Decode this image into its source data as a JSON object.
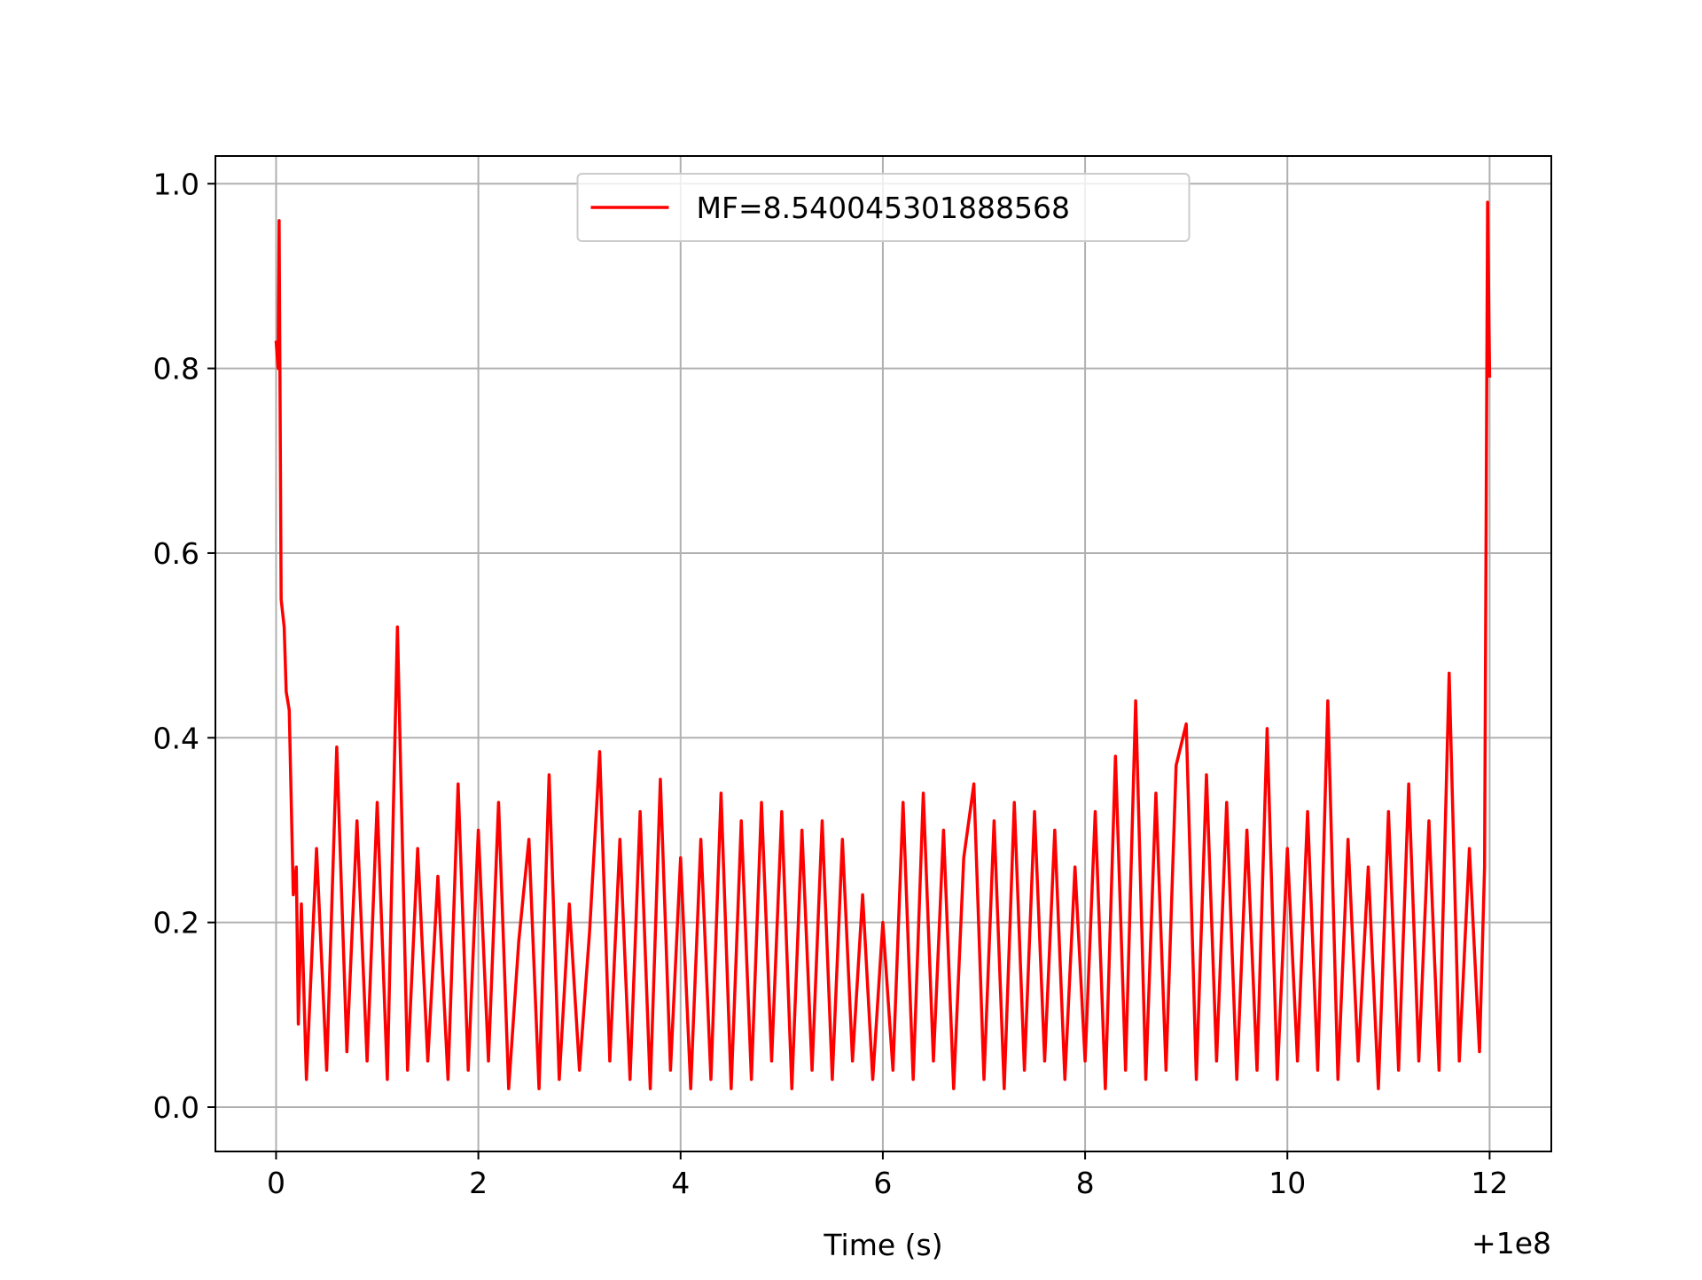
{
  "chart_data": {
    "type": "line",
    "xlabel": "Time (s)",
    "x_offset_label": "+1e8",
    "x": [
      0,
      0.02,
      0.03,
      0.05,
      0.08,
      0.1,
      0.13,
      0.15,
      0.17,
      0.2,
      0.22,
      0.25,
      0.3,
      0.4,
      0.5,
      0.6,
      0.7,
      0.8,
      0.9,
      1.0,
      1.1,
      1.2,
      1.3,
      1.4,
      1.5,
      1.6,
      1.7,
      1.8,
      1.9,
      2.0,
      2.1,
      2.2,
      2.3,
      2.4,
      2.5,
      2.6,
      2.7,
      2.8,
      2.9,
      3.0,
      3.1,
      3.2,
      3.3,
      3.4,
      3.5,
      3.6,
      3.7,
      3.8,
      3.9,
      4.0,
      4.1,
      4.2,
      4.3,
      4.4,
      4.5,
      4.6,
      4.7,
      4.8,
      4.9,
      5.0,
      5.1,
      5.2,
      5.3,
      5.4,
      5.5,
      5.6,
      5.7,
      5.8,
      5.9,
      6.0,
      6.1,
      6.2,
      6.3,
      6.4,
      6.5,
      6.6,
      6.7,
      6.8,
      6.9,
      7.0,
      7.1,
      7.2,
      7.3,
      7.4,
      7.5,
      7.6,
      7.7,
      7.8,
      7.9,
      8.0,
      8.1,
      8.2,
      8.3,
      8.4,
      8.5,
      8.6,
      8.7,
      8.8,
      8.9,
      9.0,
      9.1,
      9.2,
      9.3,
      9.4,
      9.5,
      9.6,
      9.7,
      9.8,
      9.9,
      10.0,
      10.1,
      10.2,
      10.3,
      10.4,
      10.5,
      10.6,
      10.7,
      10.8,
      10.9,
      11.0,
      11.1,
      11.2,
      11.3,
      11.4,
      11.5,
      11.6,
      11.7,
      11.8,
      11.9,
      11.95,
      11.98,
      12.0
    ],
    "series": [
      {
        "name": "MF=8.540045301888568",
        "color": "#ff0000",
        "values": [
          0.83,
          0.8,
          0.96,
          0.55,
          0.52,
          0.45,
          0.43,
          0.33,
          0.23,
          0.26,
          0.09,
          0.22,
          0.03,
          0.28,
          0.04,
          0.39,
          0.06,
          0.31,
          0.05,
          0.33,
          0.03,
          0.52,
          0.04,
          0.28,
          0.05,
          0.25,
          0.03,
          0.35,
          0.04,
          0.3,
          0.05,
          0.33,
          0.02,
          0.18,
          0.29,
          0.02,
          0.36,
          0.03,
          0.22,
          0.04,
          0.19,
          0.385,
          0.05,
          0.29,
          0.03,
          0.32,
          0.02,
          0.355,
          0.04,
          0.27,
          0.02,
          0.29,
          0.03,
          0.34,
          0.02,
          0.31,
          0.03,
          0.33,
          0.05,
          0.32,
          0.02,
          0.3,
          0.04,
          0.31,
          0.03,
          0.29,
          0.05,
          0.23,
          0.03,
          0.2,
          0.04,
          0.33,
          0.03,
          0.34,
          0.05,
          0.3,
          0.02,
          0.27,
          0.35,
          0.03,
          0.31,
          0.02,
          0.33,
          0.04,
          0.32,
          0.05,
          0.3,
          0.03,
          0.26,
          0.05,
          0.32,
          0.02,
          0.38,
          0.04,
          0.44,
          0.03,
          0.34,
          0.04,
          0.37,
          0.415,
          0.03,
          0.36,
          0.05,
          0.33,
          0.03,
          0.3,
          0.04,
          0.41,
          0.03,
          0.28,
          0.05,
          0.32,
          0.04,
          0.44,
          0.03,
          0.29,
          0.05,
          0.26,
          0.02,
          0.32,
          0.04,
          0.35,
          0.05,
          0.31,
          0.04,
          0.47,
          0.05,
          0.28,
          0.06,
          0.26,
          0.98,
          0.79
        ]
      }
    ],
    "xlim": [
      -0.6,
      12.61
    ],
    "ylim": [
      -0.048,
      1.03
    ],
    "xticks": [
      0,
      2,
      4,
      6,
      8,
      10,
      12
    ],
    "yticks": [
      {
        "value": 0,
        "label": "0.0"
      },
      0.2,
      0.4,
      0.6,
      0.8,
      {
        "value": 1,
        "label": "1.0"
      }
    ],
    "grid": true,
    "legend": "upper center"
  }
}
